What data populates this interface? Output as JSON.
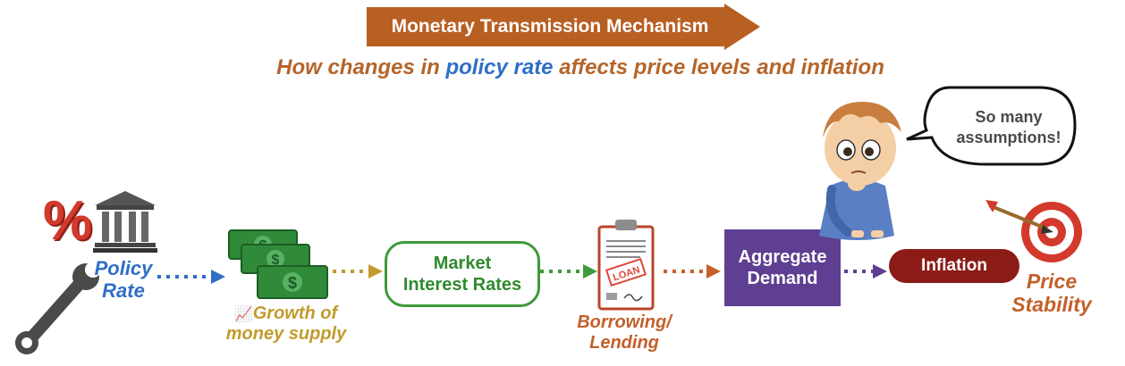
{
  "header": {
    "title": "Monetary Transmission Mechanism",
    "subtitle_part1": "How changes in ",
    "subtitle_highlight": "policy rate",
    "subtitle_part2": " affects price levels and inflation"
  },
  "nodes": {
    "policy_line1": "Policy",
    "policy_line2": "Rate",
    "growth_icon": "📈",
    "growth_line1": "Growth of",
    "growth_line2": "money supply",
    "market_line1": "Market",
    "market_line2": "Interest Rates",
    "borrow_line1": "Borrowing/",
    "borrow_line2": "Lending",
    "demand_line1": "Aggregate",
    "demand_line2": "Demand",
    "inflation": "Inflation",
    "price_line1": "Price",
    "price_line2": "Stability"
  },
  "speech": {
    "line1": "So many",
    "line2": "assumptions!"
  },
  "decor": {
    "percent_symbol": "%",
    "loan_stamp": "LOAN"
  },
  "icons": [
    "percent-icon",
    "bank-icon",
    "wrench-icon",
    "money-stack-icon",
    "loan-document-icon",
    "boy-thinking-icon",
    "speech-bubble",
    "dart-target-icon"
  ],
  "colors": {
    "title_arrow": "#b85f22",
    "subtitle": "#b5652a",
    "policy": "#2f6fc6",
    "growth": "#c29b2d",
    "market": "#3e9a3a",
    "borrow": "#c3602a",
    "demand": "#5e3f91",
    "inflation": "#8b1b17"
  }
}
